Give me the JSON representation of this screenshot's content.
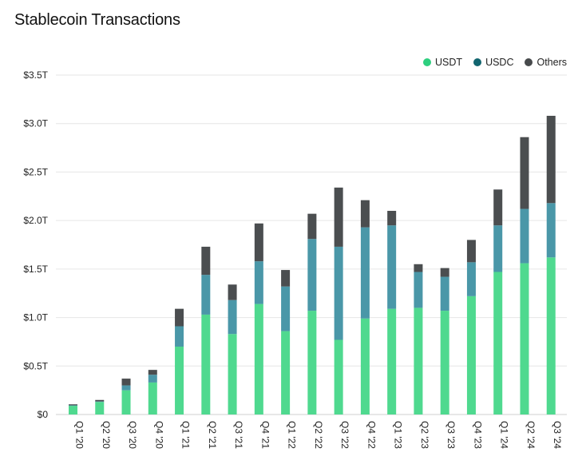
{
  "chart_data": {
    "type": "bar",
    "stacked": true,
    "title": "Stablecoin Transactions",
    "xlabel": "",
    "ylabel": "",
    "ylim": [
      0,
      3.5
    ],
    "ytick_values": [
      0,
      0.5,
      1.0,
      1.5,
      2.0,
      2.5,
      3.0,
      3.5
    ],
    "ytick_labels": [
      "$0",
      "$0.5T",
      "$1.0T",
      "$1.5T",
      "$2.0T",
      "$2.5T",
      "$3.0T",
      "$3.5T"
    ],
    "grid": true,
    "legend_position": "top-right",
    "categories": [
      "Q1 '20",
      "Q2 '20",
      "Q3 '20",
      "Q4 '20",
      "Q1 '21",
      "Q2 '21",
      "Q3 '21",
      "Q4 '21",
      "Q1 '22",
      "Q2 '22",
      "Q3 '22",
      "Q4 '22",
      "Q1 '23",
      "Q2 '23",
      "Q3 '23",
      "Q4 '23",
      "Q1 '24",
      "Q2 '24",
      "Q3 '24"
    ],
    "series": [
      {
        "name": "USDT",
        "color": "#4fd98f",
        "values": [
          0.09,
          0.13,
          0.25,
          0.33,
          0.7,
          1.03,
          0.83,
          1.14,
          0.86,
          1.07,
          0.77,
          0.99,
          1.09,
          1.1,
          1.07,
          1.22,
          1.47,
          1.56,
          1.62
        ]
      },
      {
        "name": "USDC",
        "color": "#4a97a8",
        "values": [
          0.005,
          0.005,
          0.05,
          0.08,
          0.21,
          0.41,
          0.35,
          0.44,
          0.46,
          0.74,
          0.96,
          0.94,
          0.86,
          0.37,
          0.35,
          0.35,
          0.48,
          0.56,
          0.56
        ]
      },
      {
        "name": "Others",
        "color": "#4b4e50",
        "values": [
          0.01,
          0.015,
          0.07,
          0.05,
          0.18,
          0.29,
          0.16,
          0.39,
          0.17,
          0.26,
          0.61,
          0.28,
          0.15,
          0.08,
          0.09,
          0.23,
          0.37,
          0.74,
          0.9
        ]
      }
    ]
  },
  "legend": {
    "items": [
      {
        "label": "USDT",
        "color": "#2ecf7f"
      },
      {
        "label": "USDC",
        "color": "#12656f"
      },
      {
        "label": "Others",
        "color": "#474a4c"
      }
    ]
  }
}
